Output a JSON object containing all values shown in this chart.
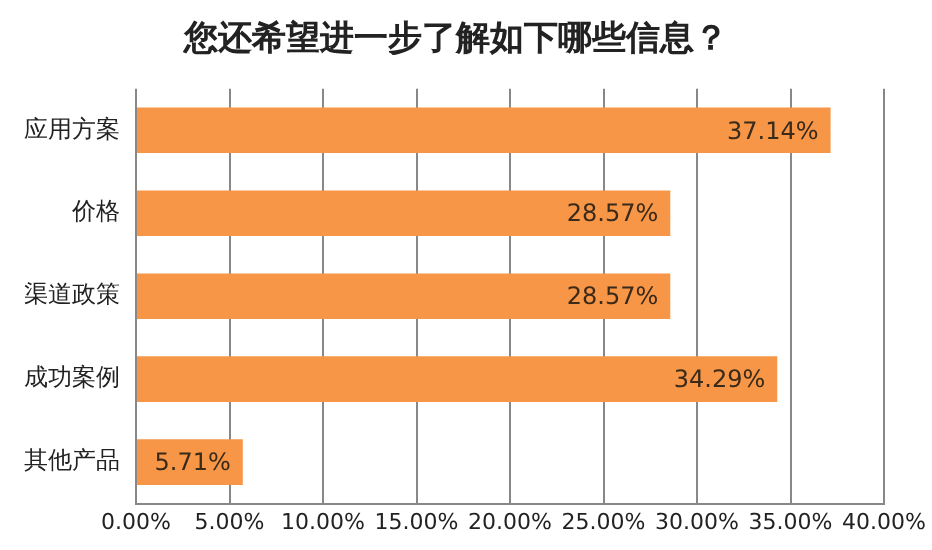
{
  "chart_data": {
    "type": "bar",
    "orientation": "horizontal",
    "title": "您还希望进一步了解如下哪些信息？",
    "categories": [
      "应用方案",
      "价格",
      "渠道政策",
      "成功案例",
      "其他产品"
    ],
    "values": [
      37.14,
      28.57,
      28.57,
      34.29,
      5.71
    ],
    "value_labels": [
      "37.14%",
      "28.57%",
      "28.57%",
      "34.29%",
      "5.71%"
    ],
    "color": "#f79646",
    "xlim": [
      0,
      40
    ],
    "xticks": [
      {
        "value": 0,
        "label": "0.00%"
      },
      {
        "value": 5,
        "label": "5.00%"
      },
      {
        "value": 10,
        "label": "10.00%"
      },
      {
        "value": 15,
        "label": "15.00%"
      },
      {
        "value": 20,
        "label": "20.00%"
      },
      {
        "value": 25,
        "label": "25.00%"
      },
      {
        "value": 30,
        "label": "30.00%"
      },
      {
        "value": 35,
        "label": "35.00%"
      },
      {
        "value": 40,
        "label": "40.00%"
      }
    ],
    "grid": "x",
    "legend": false
  }
}
